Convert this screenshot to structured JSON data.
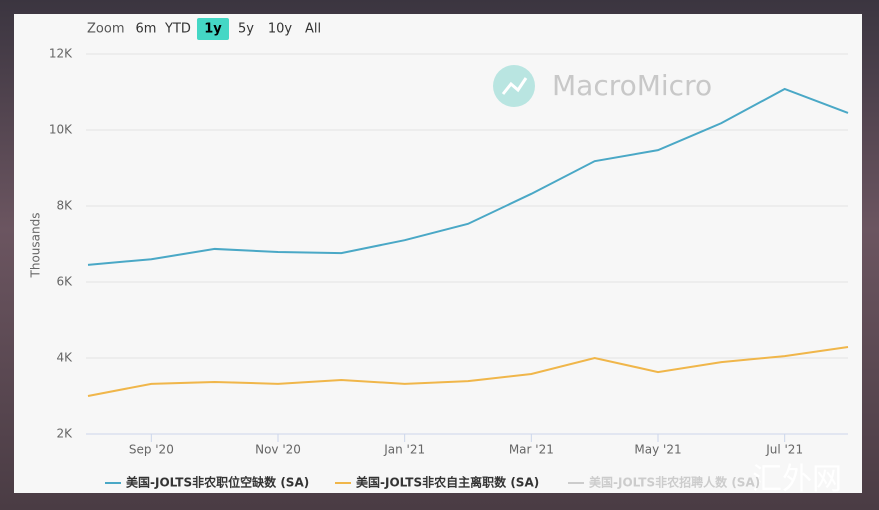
{
  "range_selector": {
    "label": "Zoom",
    "buttons": [
      "6m",
      "YTD",
      "1y",
      "5y",
      "10y",
      "All"
    ],
    "selected": "1y"
  },
  "watermark": "MacroMicro",
  "corner_mark": "汇外网",
  "chart_data": {
    "type": "line",
    "y_label": "Thousands",
    "categories": [
      null,
      "Sep '20",
      null,
      "Nov '20",
      null,
      "Jan '21",
      null,
      "Mar '21",
      null,
      "May '21",
      null,
      "Jul '21",
      null
    ],
    "ylim": [
      2000,
      12000
    ],
    "yticks": [
      {
        "value": 2000,
        "label": "2K"
      },
      {
        "value": 4000,
        "label": "4K"
      },
      {
        "value": 6000,
        "label": "6K"
      },
      {
        "value": 8000,
        "label": "8K"
      },
      {
        "value": 10000,
        "label": "10K"
      },
      {
        "value": 12000,
        "label": "12K"
      }
    ],
    "grid": true,
    "legend": "bottom",
    "series": [
      {
        "name": "美国-JOLTS非农职位空缺数 (SA)",
        "color": "#4aa8c6",
        "values": [
          6450,
          6600,
          6870,
          6790,
          6760,
          7100,
          7530,
          8320,
          9180,
          9470,
          10180,
          11080,
          10450
        ]
      },
      {
        "name": "美国-JOLTS非农自主离职数 (SA)",
        "color": "#f0b64a",
        "values": [
          3000,
          3320,
          3370,
          3320,
          3420,
          3320,
          3390,
          3580,
          4000,
          3630,
          3890,
          4050,
          4290
        ]
      },
      {
        "name": "美国-JOLTS非农招聘人数 (SA)",
        "color": "#cccccc",
        "hidden": true,
        "values": [
          null,
          null,
          null,
          null,
          null,
          null,
          null,
          null,
          null,
          null,
          null,
          null,
          null
        ]
      }
    ]
  }
}
